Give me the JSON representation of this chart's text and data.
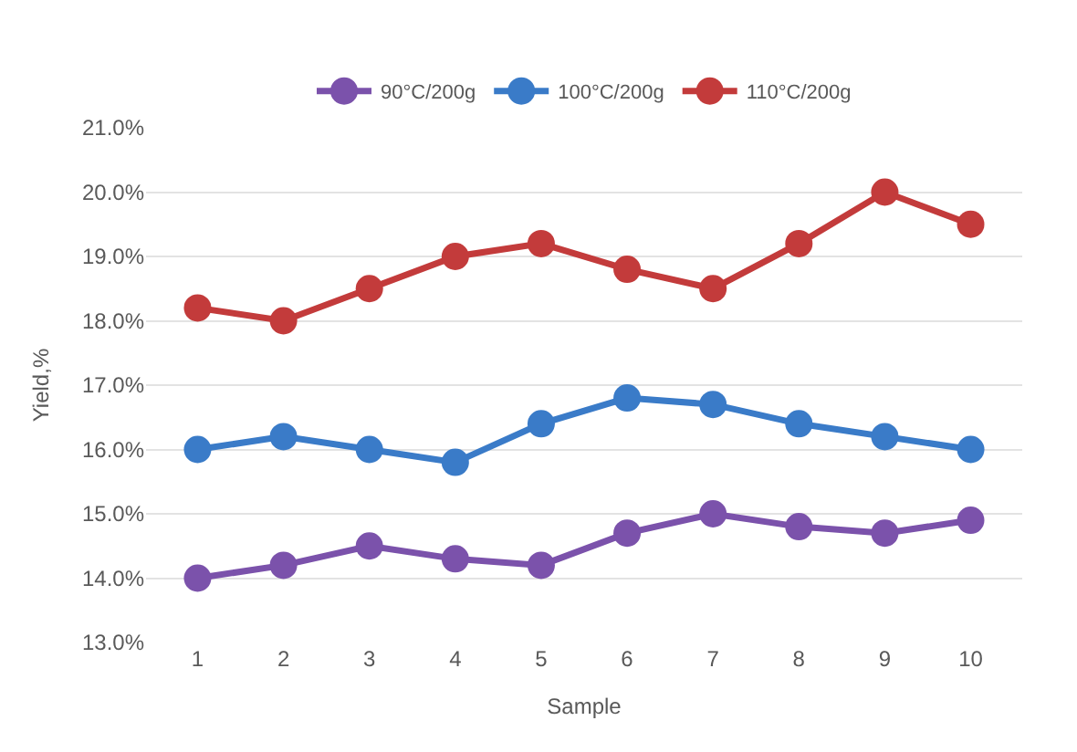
{
  "chart_data": {
    "type": "line",
    "xlabel": "Sample",
    "ylabel": "Yield,%",
    "categories": [
      "1",
      "2",
      "3",
      "4",
      "5",
      "6",
      "7",
      "8",
      "9",
      "10"
    ],
    "series": [
      {
        "name": "90°C/200g",
        "color": "#7b52ab",
        "values": [
          14.0,
          14.2,
          14.5,
          14.3,
          14.2,
          14.7,
          15.0,
          14.8,
          14.7,
          14.9
        ]
      },
      {
        "name": "100°C/200g",
        "color": "#3a7bc8",
        "values": [
          16.0,
          16.2,
          16.0,
          15.8,
          16.4,
          16.8,
          16.7,
          16.4,
          16.2,
          16.0
        ]
      },
      {
        "name": "110°C/200g",
        "color": "#c33b3b",
        "values": [
          18.2,
          18.0,
          18.5,
          19.0,
          19.2,
          18.8,
          18.5,
          19.2,
          20.0,
          19.5
        ]
      }
    ],
    "ylim": [
      13,
      21
    ],
    "yticks": [
      {
        "value": 13,
        "label": "13.0%"
      },
      {
        "value": 14,
        "label": "14.0%"
      },
      {
        "value": 15,
        "label": "15.0%"
      },
      {
        "value": 16,
        "label": "16.0%"
      },
      {
        "value": 17,
        "label": "17.0%"
      },
      {
        "value": 18,
        "label": "18.0%"
      },
      {
        "value": 19,
        "label": "19.0%"
      },
      {
        "value": 20,
        "label": "20.0%"
      },
      {
        "value": 21,
        "label": "21.0%"
      }
    ],
    "grid": "y",
    "legend": "top",
    "marker": "circle",
    "line_style": "solid"
  }
}
